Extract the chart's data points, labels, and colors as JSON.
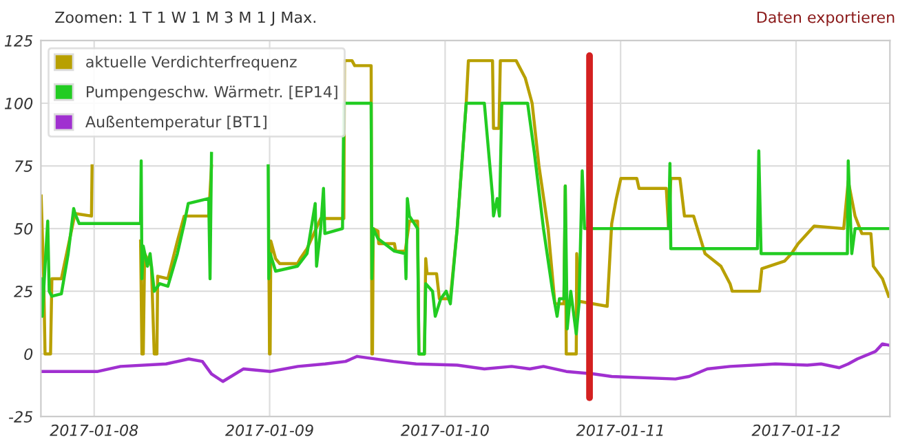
{
  "chart_data": {
    "type": "line",
    "annotations": [
      "Zoomen: 1 T 1 W 1 M 3 M 1 J Max.",
      "Daten exportieren"
    ],
    "xlim": [
      "2017-01-07T16:43",
      "2017-01-12T12:50"
    ],
    "xticks": [
      "2017-01-08",
      "2017-01-09",
      "2017-01-10",
      "2017-01-11",
      "2017-01-12"
    ],
    "ylim": [
      -25,
      125
    ],
    "yticks": [
      -25,
      0,
      25,
      50,
      75,
      100,
      125
    ],
    "grid": true,
    "legend": "top left",
    "ref_lines": [
      {
        "axis": "x",
        "value": "2017-01-10T19:45",
        "label": null,
        "color": "#d42020"
      }
    ],
    "series": [
      {
        "name": "aktuelle Verdichterfrequenz",
        "color": "#b8a000",
        "x": [
          "2017-01-07T16:45",
          "2017-01-07T17:06",
          "2017-01-07T17:17",
          "2017-01-07T18:02",
          "2017-01-07T18:13",
          "2017-01-07T19:31",
          "2017-01-07T21:23",
          "2017-01-07T23:38",
          "2017-01-07T23:43",
          "2017-01-08T02:59",
          "2017-01-08T06:21",
          "2017-01-08T06:32",
          "2017-01-08T06:43",
          "2017-01-08T06:54",
          "2017-01-08T07:50",
          "2017-01-08T08:13",
          "2017-01-08T08:35",
          "2017-01-08T08:41",
          "2017-01-08T10:05",
          "2017-01-08T11:23",
          "2017-01-08T12:19",
          "2017-01-08T15:40",
          "2017-01-08T16:03",
          "2017-01-08T19:47",
          "2017-01-08T23:53",
          "2017-01-08T23:59",
          "2017-01-09T00:04",
          "2017-01-09T00:10",
          "2017-01-09T00:49",
          "2017-01-09T01:23",
          "2017-01-09T03:49",
          "2017-01-09T04:11",
          "2017-01-09T05:07",
          "2017-01-09T06:59",
          "2017-01-09T10:09",
          "2017-01-09T10:14",
          "2017-01-09T11:16",
          "2017-01-09T11:38",
          "2017-01-09T13:53",
          "2017-01-09T13:59",
          "2017-01-09T14:04",
          "2017-01-09T14:10",
          "2017-01-09T14:49",
          "2017-01-09T14:55",
          "2017-01-09T17:04",
          "2017-01-09T17:15",
          "2017-01-09T18:33",
          "2017-01-09T19:07",
          "2017-01-09T20:14",
          "2017-01-09T20:25",
          "2017-01-09T21:10",
          "2017-01-09T21:21",
          "2017-01-09T21:32",
          "2017-01-09T22:50",
          "2017-01-09T23:13",
          "2017-01-10T00:43",
          "2017-01-10T01:39",
          "2017-01-10T02:53",
          "2017-01-10T03:11",
          "2017-01-10T06:29",
          "2017-01-10T06:37",
          "2017-01-10T07:22",
          "2017-01-10T07:33",
          "2017-01-10T09:43",
          "2017-01-10T10:58",
          "2017-01-10T11:54",
          "2017-01-10T12:50",
          "2017-01-10T14:05",
          "2017-01-10T15:01",
          "2017-01-10T16:15",
          "2017-01-10T16:26",
          "2017-01-10T16:34",
          "2017-01-10T17:56",
          "2017-01-10T18:00",
          "2017-01-10T18:19",
          "2017-01-10T22:10",
          "2017-01-10T22:47",
          "2017-01-10T23:25",
          "2017-01-11T00:02",
          "2017-01-11T02:13",
          "2017-01-11T02:31",
          "2017-01-11T06:15",
          "2017-01-11T06:34",
          "2017-01-11T06:52",
          "2017-01-11T08:07",
          "2017-01-11T08:44",
          "2017-01-11T09:59",
          "2017-01-11T11:33",
          "2017-01-11T13:43",
          "2017-01-11T14:58",
          "2017-01-11T15:16",
          "2017-01-11T19:00",
          "2017-01-11T19:19",
          "2017-01-11T22:25",
          "2017-01-11T23:22",
          "2017-01-12T00:17",
          "2017-01-12T02:28",
          "2017-01-12T06:31",
          "2017-01-12T07:08",
          "2017-01-12T08:04",
          "2017-01-12T09:00",
          "2017-01-12T10:14",
          "2017-01-12T10:34",
          "2017-01-12T11:49",
          "2017-01-12T12:40"
        ],
        "values": [
          63,
          30,
          0,
          0,
          30,
          30,
          56,
          55,
          75,
          null,
          45,
          0,
          0,
          40,
          35,
          0,
          0,
          31,
          30,
          45,
          55,
          55,
          75,
          null,
          45,
          0,
          0,
          45,
          38,
          36,
          36,
          38,
          42,
          54,
          54,
          117,
          117,
          115,
          115,
          0,
          0,
          50,
          49,
          44,
          44,
          41,
          41,
          53,
          53,
          0,
          0,
          38,
          32,
          32,
          22,
          22,
          50,
          100,
          117,
          117,
          90,
          90,
          117,
          117,
          110,
          100,
          75,
          50,
          20,
          20,
          67,
          0,
          0,
          40,
          21,
          19,
          52,
          62,
          70,
          70,
          66,
          66,
          50,
          70,
          70,
          55,
          55,
          40,
          35,
          28,
          25,
          25,
          34,
          37,
          40,
          44,
          51,
          50,
          69,
          55,
          48,
          48,
          35,
          30,
          23
        ]
      },
      {
        "name": "Pumpengeschw. Wärmetr. [EP14]",
        "color": "#22cc22",
        "x": [
          "2017-01-07T16:45",
          "2017-01-07T16:54",
          "2017-01-07T17:17",
          "2017-01-07T17:39",
          "2017-01-07T17:51",
          "2017-01-07T18:13",
          "2017-01-07T19:31",
          "2017-01-07T20:27",
          "2017-01-07T21:12",
          "2017-01-07T21:23",
          "2017-01-07T21:57",
          "2017-01-08T06:21",
          "2017-01-08T06:26",
          "2017-01-08T06:32",
          "2017-01-08T06:43",
          "2017-01-08T07:17",
          "2017-01-08T07:39",
          "2017-01-08T08:13",
          "2017-01-08T08:57",
          "2017-01-08T10:05",
          "2017-01-08T11:23",
          "2017-01-08T12:19",
          "2017-01-08T12:52",
          "2017-01-08T15:40",
          "2017-01-08T15:51",
          "2017-01-08T16:03",
          "2017-01-08T19:47",
          "2017-01-08T23:48",
          "2017-01-08T23:53",
          "2017-01-09T00:04",
          "2017-01-09T00:49",
          "2017-01-09T03:49",
          "2017-01-09T05:07",
          "2017-01-09T06:14",
          "2017-01-09T06:25",
          "2017-01-09T06:59",
          "2017-01-09T07:22",
          "2017-01-09T07:33",
          "2017-01-09T09:58",
          "2017-01-09T10:09",
          "2017-01-09T13:53",
          "2017-01-09T13:59",
          "2017-01-09T14:10",
          "2017-01-09T14:49",
          "2017-01-09T17:04",
          "2017-01-09T18:33",
          "2017-01-09T18:39",
          "2017-01-09T18:50",
          "2017-01-09T19:07",
          "2017-01-09T20:14",
          "2017-01-09T20:25",
          "2017-01-09T21:10",
          "2017-01-09T21:21",
          "2017-01-09T22:17",
          "2017-01-09T22:39",
          "2017-01-09T23:24",
          "2017-01-10T00:09",
          "2017-01-10T00:43",
          "2017-01-10T01:39",
          "2017-01-10T02:53",
          "2017-01-10T05:22",
          "2017-01-10T06:29",
          "2017-01-10T06:37",
          "2017-01-10T07:07",
          "2017-01-10T07:26",
          "2017-01-10T07:45",
          "2017-01-10T11:17",
          "2017-01-10T12:13",
          "2017-01-10T13:27",
          "2017-01-10T14:42",
          "2017-01-10T15:19",
          "2017-01-10T15:38",
          "2017-01-10T16:15",
          "2017-01-10T16:26",
          "2017-01-10T16:42",
          "2017-01-10T17:11",
          "2017-01-10T17:56",
          "2017-01-10T18:19",
          "2017-01-10T18:45",
          "2017-01-10T19:04",
          "2017-01-11T06:34",
          "2017-01-11T06:45",
          "2017-01-11T06:52",
          "2017-01-11T18:43",
          "2017-01-11T18:54",
          "2017-01-11T19:13",
          "2017-01-12T07:01",
          "2017-01-12T07:08",
          "2017-01-12T07:37",
          "2017-01-12T08:04",
          "2017-01-12T12:40"
        ],
        "values": [
          30,
          15,
          35,
          53,
          25,
          23,
          24,
          40,
          58,
          56,
          52,
          52,
          77,
          30,
          43,
          35,
          40,
          25,
          28,
          27,
          40,
          52,
          60,
          62,
          30,
          80,
          null,
          75,
          30,
          40,
          33,
          35,
          40,
          60,
          35,
          50,
          66,
          48,
          50,
          100,
          100,
          30,
          50,
          46,
          41,
          40,
          30,
          62,
          55,
          50,
          0,
          0,
          28,
          25,
          15,
          22,
          25,
          20,
          50,
          100,
          100,
          63,
          55,
          62,
          55,
          100,
          100,
          80,
          50,
          25,
          15,
          22,
          22,
          67,
          10,
          25,
          8,
          20,
          73,
          50,
          50,
          76,
          42,
          42,
          81,
          40,
          40,
          77,
          40,
          50,
          50
        ]
      },
      {
        "name": "Außentemperatur [BT1]",
        "color": "#a030d0",
        "x": [
          "2017-01-07T16:45",
          "2017-01-08T00:30",
          "2017-01-08T03:36",
          "2017-01-08T09:50",
          "2017-01-08T12:56",
          "2017-01-08T14:48",
          "2017-01-08T16:03",
          "2017-01-08T17:36",
          "2017-01-08T20:24",
          "2017-01-09T00:08",
          "2017-01-09T03:52",
          "2017-01-09T07:35",
          "2017-01-09T10:23",
          "2017-01-09T11:58",
          "2017-01-09T16:56",
          "2017-01-09T20:02",
          "2017-01-10T01:39",
          "2017-01-10T05:22",
          "2017-01-10T09:06",
          "2017-01-10T11:35",
          "2017-01-10T13:27",
          "2017-01-10T16:34",
          "2017-01-10T20:18",
          "2017-01-10T22:47",
          "2017-01-11T07:30",
          "2017-01-11T09:22",
          "2017-01-11T11:52",
          "2017-01-11T14:58",
          "2017-01-11T21:11",
          "2017-01-12T01:32",
          "2017-01-12T03:25",
          "2017-01-12T05:54",
          "2017-01-12T07:08",
          "2017-01-12T08:23",
          "2017-01-12T10:52",
          "2017-01-12T11:49",
          "2017-01-12T12:40"
        ],
        "values": [
          -7,
          -7,
          -5,
          -4,
          -2,
          -3,
          -8,
          -11,
          -6,
          -7,
          -5,
          -4,
          -3,
          -1,
          -3,
          -4,
          -4.5,
          -6,
          -5,
          -6,
          -5,
          -7,
          -8,
          -9,
          -10,
          -9,
          -6,
          -5,
          -4,
          -4.5,
          -4,
          -5.5,
          -4,
          -2,
          1,
          4,
          3.5
        ]
      }
    ]
  }
}
